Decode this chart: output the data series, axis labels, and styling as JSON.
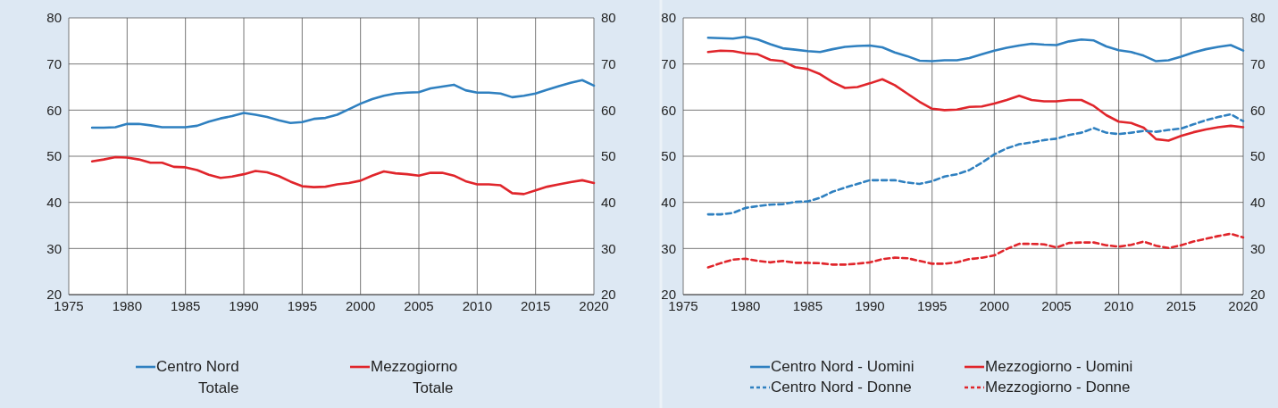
{
  "chart_data": [
    {
      "type": "line",
      "x": [
        1977,
        1978,
        1979,
        1980,
        1981,
        1982,
        1983,
        1984,
        1985,
        1986,
        1987,
        1988,
        1989,
        1990,
        1991,
        1992,
        1993,
        1994,
        1995,
        1996,
        1997,
        1998,
        1999,
        2000,
        2001,
        2002,
        2003,
        2004,
        2005,
        2006,
        2007,
        2008,
        2009,
        2010,
        2011,
        2012,
        2013,
        2014,
        2015,
        2016,
        2017,
        2018,
        2019,
        2020
      ],
      "series": [
        {
          "name": "Centro Nord Totale",
          "color": "#2f80c0",
          "values": [
            56.2,
            56.2,
            56.3,
            57.0,
            57.0,
            56.7,
            56.3,
            56.3,
            56.3,
            56.6,
            57.5,
            58.2,
            58.7,
            59.4,
            59.0,
            58.5,
            57.8,
            57.2,
            57.4,
            58.1,
            58.3,
            59.0,
            60.2,
            61.4,
            62.4,
            63.1,
            63.6,
            63.8,
            63.9,
            64.7,
            65.1,
            65.5,
            64.3,
            63.8,
            63.8,
            63.6,
            62.8,
            63.1,
            63.6,
            64.4,
            65.2,
            65.9,
            66.5,
            65.3
          ]
        },
        {
          "name": "Mezzogiorno Totale",
          "color": "#e0252b",
          "values": [
            48.9,
            49.3,
            49.8,
            49.7,
            49.3,
            48.6,
            48.6,
            47.7,
            47.6,
            47.0,
            46.0,
            45.3,
            45.6,
            46.1,
            46.8,
            46.5,
            45.7,
            44.5,
            43.5,
            43.3,
            43.4,
            43.9,
            44.2,
            44.7,
            45.8,
            46.7,
            46.3,
            46.1,
            45.8,
            46.4,
            46.4,
            45.8,
            44.6,
            43.9,
            43.9,
            43.7,
            42.0,
            41.8,
            42.6,
            43.4,
            43.9,
            44.4,
            44.8,
            44.2
          ]
        }
      ],
      "xlim": [
        1975,
        2020
      ],
      "xticks": [
        1975,
        1980,
        1985,
        1990,
        1995,
        2000,
        2005,
        2010,
        2015,
        2020
      ],
      "ylim": [
        20,
        80
      ],
      "yticks": [
        20,
        30,
        40,
        50,
        60,
        70,
        80
      ],
      "y2lim": [
        20,
        80
      ],
      "y2ticks": [
        20,
        30,
        40,
        50,
        60,
        70,
        80
      ],
      "grid": true,
      "legend": "bottom",
      "marker": "none",
      "line_style": "solid"
    },
    {
      "type": "line",
      "x": [
        1977,
        1978,
        1979,
        1980,
        1981,
        1982,
        1983,
        1984,
        1985,
        1986,
        1987,
        1988,
        1989,
        1990,
        1991,
        1992,
        1993,
        1994,
        1995,
        1996,
        1997,
        1998,
        1999,
        2000,
        2001,
        2002,
        2003,
        2004,
        2005,
        2006,
        2007,
        2008,
        2009,
        2010,
        2011,
        2012,
        2013,
        2014,
        2015,
        2016,
        2017,
        2018,
        2019,
        2020
      ],
      "series": [
        {
          "name": "Centro Nord - Uomini",
          "color": "#2f80c0",
          "line_style": "solid",
          "values": [
            75.7,
            75.6,
            75.5,
            75.9,
            75.3,
            74.3,
            73.4,
            73.1,
            72.8,
            72.6,
            73.2,
            73.7,
            73.9,
            74.0,
            73.6,
            72.5,
            71.7,
            70.7,
            70.6,
            70.8,
            70.8,
            71.3,
            72.1,
            72.9,
            73.5,
            74.0,
            74.4,
            74.2,
            74.1,
            74.9,
            75.3,
            75.1,
            73.8,
            73.0,
            72.6,
            71.8,
            70.6,
            70.8,
            71.6,
            72.5,
            73.2,
            73.7,
            74.1,
            72.9
          ]
        },
        {
          "name": "Mezzogiorno - Uomini",
          "color": "#e0252b",
          "line_style": "solid",
          "values": [
            72.6,
            72.9,
            72.8,
            72.3,
            72.1,
            70.9,
            70.6,
            69.3,
            68.9,
            67.8,
            66.1,
            64.8,
            65.0,
            65.8,
            66.7,
            65.4,
            63.6,
            61.8,
            60.3,
            60.0,
            60.1,
            60.7,
            60.8,
            61.4,
            62.2,
            63.1,
            62.2,
            61.9,
            61.9,
            62.2,
            62.2,
            60.9,
            58.9,
            57.5,
            57.2,
            56.2,
            53.7,
            53.4,
            54.4,
            55.2,
            55.8,
            56.3,
            56.6,
            56.3
          ]
        },
        {
          "name": "Centro Nord - Donne",
          "color": "#2f80c0",
          "line_style": "dashed",
          "values": [
            37.4,
            37.4,
            37.7,
            38.8,
            39.2,
            39.5,
            39.6,
            40.1,
            40.2,
            41.0,
            42.3,
            43.2,
            44.0,
            44.8,
            44.8,
            44.8,
            44.3,
            44.0,
            44.6,
            45.6,
            46.1,
            47.0,
            48.6,
            50.4,
            51.7,
            52.6,
            53.0,
            53.5,
            53.8,
            54.6,
            55.1,
            56.1,
            55.1,
            54.8,
            55.1,
            55.5,
            55.3,
            55.7,
            56.0,
            56.9,
            57.8,
            58.5,
            59.1,
            57.6
          ]
        },
        {
          "name": "Mezzogiorno - Donne",
          "color": "#e0252b",
          "line_style": "dashed",
          "values": [
            25.9,
            26.8,
            27.6,
            27.8,
            27.3,
            27.0,
            27.3,
            26.9,
            26.9,
            26.8,
            26.5,
            26.5,
            26.7,
            27.0,
            27.7,
            28.0,
            27.9,
            27.3,
            26.7,
            26.7,
            27.0,
            27.7,
            28.0,
            28.5,
            29.9,
            31.0,
            31.0,
            30.9,
            30.2,
            31.2,
            31.3,
            31.3,
            30.7,
            30.4,
            30.8,
            31.5,
            30.6,
            30.1,
            30.7,
            31.5,
            32.1,
            32.7,
            33.2,
            32.4
          ]
        }
      ],
      "xlim": [
        1975,
        2020
      ],
      "xticks": [
        1975,
        1980,
        1985,
        1990,
        1995,
        2000,
        2005,
        2010,
        2015,
        2020
      ],
      "ylim": [
        20,
        80
      ],
      "yticks": [
        20,
        30,
        40,
        50,
        60,
        70,
        80
      ],
      "y2lim": [
        20,
        80
      ],
      "y2ticks": [
        20,
        30,
        40,
        50,
        60,
        70,
        80
      ],
      "grid": true,
      "legend": "bottom",
      "marker": "none"
    }
  ]
}
